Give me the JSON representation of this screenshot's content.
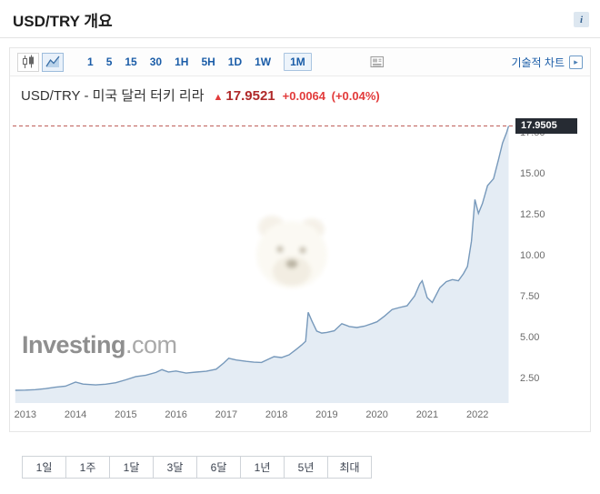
{
  "header": {
    "title": "USD/TRY 개요",
    "info_icon": "i"
  },
  "toolbar": {
    "intervals": [
      "1",
      "5",
      "15",
      "30",
      "1H",
      "5H",
      "1D",
      "1W",
      "1M"
    ],
    "selected_interval": "1M",
    "technical_chart": "기술적 차트",
    "technical_chart_arrow": "▸"
  },
  "quote": {
    "name": "USD/TRY - 미국 달러 터키 리라",
    "arrow": "▲",
    "price": "17.9521",
    "change": "+0.0064",
    "change_pct": "(+0.04%)",
    "up_color": "#e23b3b"
  },
  "chart_data": {
    "type": "area",
    "title": "USD/TRY - 미국 달러 터키 리라",
    "xlabel": "",
    "ylabel": "",
    "xlim": [
      2012.75,
      2022.72
    ],
    "ylim": [
      1.0,
      18.75
    ],
    "grid": false,
    "legend": false,
    "last_price": 17.9505,
    "last_price_label": "17.9505",
    "line_color": "#7799bb",
    "fill_color": "#e4ecf4",
    "dashed_line_color": "#bc5650",
    "watermark_bold": "Investing",
    "watermark_light": ".com",
    "x_ticks": [
      {
        "value": 2013,
        "label": "2013"
      },
      {
        "value": 2014,
        "label": "2014"
      },
      {
        "value": 2015,
        "label": "2015"
      },
      {
        "value": 2016,
        "label": "2016"
      },
      {
        "value": 2017,
        "label": "2017"
      },
      {
        "value": 2018,
        "label": "2018"
      },
      {
        "value": 2019,
        "label": "2019"
      },
      {
        "value": 2020,
        "label": "2020"
      },
      {
        "value": 2021,
        "label": "2021"
      },
      {
        "value": 2022,
        "label": "2022"
      }
    ],
    "y_ticks": [
      {
        "value": 2.5,
        "label": "2.50"
      },
      {
        "value": 5.0,
        "label": "5.00"
      },
      {
        "value": 7.5,
        "label": "7.50"
      },
      {
        "value": 10.0,
        "label": "10.00"
      },
      {
        "value": 12.5,
        "label": "12.50"
      },
      {
        "value": 15.0,
        "label": "15.00"
      },
      {
        "value": 17.5,
        "label": "17.50"
      }
    ],
    "series": [
      {
        "name": "USD/TRY",
        "points": [
          [
            2012.8,
            1.78
          ],
          [
            2013.0,
            1.79
          ],
          [
            2013.2,
            1.82
          ],
          [
            2013.4,
            1.88
          ],
          [
            2013.6,
            1.97
          ],
          [
            2013.8,
            2.03
          ],
          [
            2014.0,
            2.28
          ],
          [
            2014.15,
            2.16
          ],
          [
            2014.4,
            2.11
          ],
          [
            2014.6,
            2.15
          ],
          [
            2014.8,
            2.24
          ],
          [
            2015.0,
            2.42
          ],
          [
            2015.2,
            2.62
          ],
          [
            2015.4,
            2.7
          ],
          [
            2015.6,
            2.87
          ],
          [
            2015.72,
            3.04
          ],
          [
            2015.85,
            2.9
          ],
          [
            2016.0,
            2.96
          ],
          [
            2016.2,
            2.83
          ],
          [
            2016.4,
            2.89
          ],
          [
            2016.6,
            2.94
          ],
          [
            2016.8,
            3.07
          ],
          [
            2016.95,
            3.45
          ],
          [
            2017.05,
            3.74
          ],
          [
            2017.2,
            3.63
          ],
          [
            2017.4,
            3.55
          ],
          [
            2017.55,
            3.5
          ],
          [
            2017.7,
            3.48
          ],
          [
            2017.85,
            3.7
          ],
          [
            2017.95,
            3.84
          ],
          [
            2018.1,
            3.78
          ],
          [
            2018.25,
            3.95
          ],
          [
            2018.4,
            4.3
          ],
          [
            2018.5,
            4.55
          ],
          [
            2018.58,
            4.78
          ],
          [
            2018.63,
            6.55
          ],
          [
            2018.7,
            6.05
          ],
          [
            2018.8,
            5.4
          ],
          [
            2018.9,
            5.28
          ],
          [
            2019.0,
            5.32
          ],
          [
            2019.15,
            5.42
          ],
          [
            2019.3,
            5.85
          ],
          [
            2019.45,
            5.68
          ],
          [
            2019.6,
            5.62
          ],
          [
            2019.75,
            5.7
          ],
          [
            2019.9,
            5.86
          ],
          [
            2020.0,
            5.97
          ],
          [
            2020.15,
            6.32
          ],
          [
            2020.3,
            6.72
          ],
          [
            2020.45,
            6.84
          ],
          [
            2020.6,
            6.95
          ],
          [
            2020.75,
            7.55
          ],
          [
            2020.85,
            8.28
          ],
          [
            2020.9,
            8.48
          ],
          [
            2021.0,
            7.45
          ],
          [
            2021.1,
            7.15
          ],
          [
            2021.25,
            8.05
          ],
          [
            2021.38,
            8.42
          ],
          [
            2021.5,
            8.55
          ],
          [
            2021.62,
            8.48
          ],
          [
            2021.72,
            8.9
          ],
          [
            2021.8,
            9.35
          ],
          [
            2021.88,
            10.9
          ],
          [
            2021.95,
            13.45
          ],
          [
            2022.02,
            12.6
          ],
          [
            2022.1,
            13.2
          ],
          [
            2022.2,
            14.3
          ],
          [
            2022.32,
            14.72
          ],
          [
            2022.42,
            15.9
          ],
          [
            2022.5,
            16.9
          ],
          [
            2022.58,
            17.55
          ],
          [
            2022.62,
            17.95
          ]
        ]
      }
    ]
  },
  "periods": {
    "labels": [
      "1일",
      "1주",
      "1달",
      "3달",
      "6달",
      "1년",
      "5년",
      "최대"
    ]
  }
}
